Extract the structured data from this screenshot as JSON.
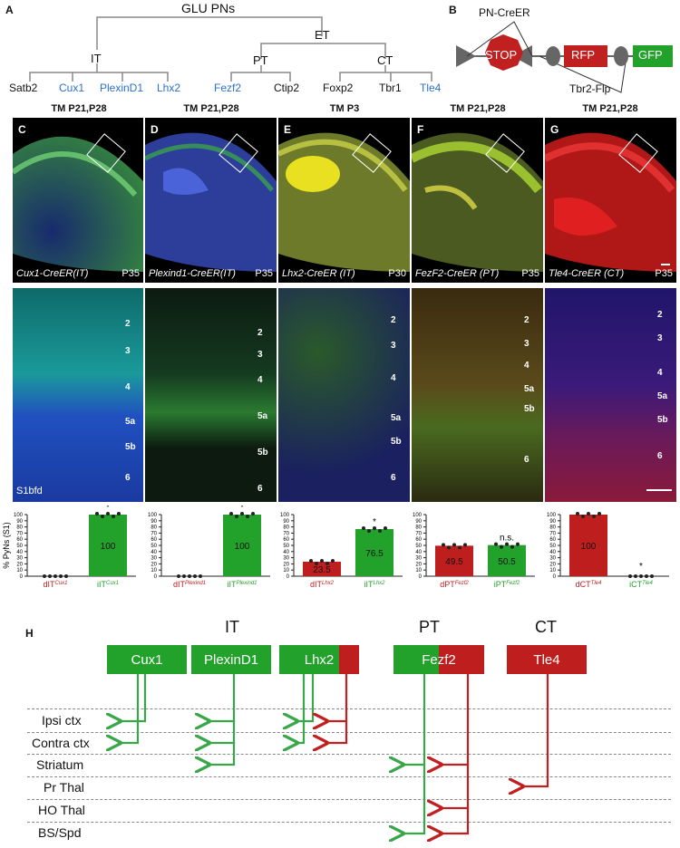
{
  "panel_A": {
    "letter": "A",
    "root": "GLU PNs",
    "it": "IT",
    "et": "ET",
    "pt": "PT",
    "ct": "CT",
    "it_genes": [
      "Satb2",
      "Cux1",
      "PlexinD1",
      "Lhx2"
    ],
    "pt_genes": [
      "Fezf2",
      "Ctip2"
    ],
    "ct_genes": [
      "Foxp2",
      "Tbr1",
      "Tle4"
    ]
  },
  "panel_B": {
    "letter": "B",
    "top_label": "PN-CreER",
    "stop": "STOP",
    "rfp": "RFP",
    "gfp": "GFP",
    "bottom_label": "Tbr2-Flp"
  },
  "columns": [
    {
      "tm": "TM P21,P28",
      "letter": "C",
      "line": "Cux1-CreER(IT)",
      "age": "P35"
    },
    {
      "tm": "TM P21,P28",
      "letter": "D",
      "line": "Plexind1-CreER(IT)",
      "age": "P35"
    },
    {
      "tm": "TM P3",
      "letter": "E",
      "line": "Lhx2-CreER (IT)",
      "age": "P30"
    },
    {
      "tm": "TM P21,P28",
      "letter": "F",
      "line": "FezF2-CreER (PT)",
      "age": "P35"
    },
    {
      "tm": "TM P21,P28",
      "letter": "G",
      "line": "Tle4-CreER (CT)",
      "age": "P35"
    }
  ],
  "layers": [
    "2",
    "3",
    "4",
    "5a",
    "5b",
    "6"
  ],
  "s1_label": "S1bfd",
  "chart_data": [
    {
      "type": "bar",
      "ylabel": "% PyNs (S1)",
      "ylim": [
        0,
        100
      ],
      "yticks": [
        0,
        10,
        20,
        30,
        40,
        50,
        60,
        70,
        80,
        90,
        100
      ],
      "categories": [
        "dITCux1",
        "iITCux1"
      ],
      "values": [
        0,
        100
      ],
      "labels": [
        "",
        "100"
      ],
      "sig": [
        "",
        "*"
      ]
    },
    {
      "type": "bar",
      "ylim": [
        0,
        100
      ],
      "yticks": [
        0,
        10,
        20,
        30,
        40,
        50,
        60,
        70,
        80,
        90,
        100
      ],
      "categories": [
        "dITPlexind1",
        "iITPlexind1"
      ],
      "values": [
        0,
        100
      ],
      "labels": [
        "",
        "100"
      ],
      "sig": [
        "",
        "*"
      ]
    },
    {
      "type": "bar",
      "ylim": [
        0,
        100
      ],
      "yticks": [
        0,
        10,
        20,
        30,
        40,
        50,
        60,
        70,
        80,
        90,
        100
      ],
      "categories": [
        "dITLhx2",
        "iITLhx2"
      ],
      "values": [
        23.5,
        76.5
      ],
      "labels": [
        "23.5",
        "76.5"
      ],
      "sig": [
        "",
        "*"
      ]
    },
    {
      "type": "bar",
      "ylim": [
        0,
        100
      ],
      "yticks": [
        0,
        10,
        20,
        30,
        40,
        50,
        60,
        70,
        80,
        90,
        100
      ],
      "categories": [
        "dPTFezf2",
        "iPTFezf2"
      ],
      "values": [
        49.5,
        50.5
      ],
      "labels": [
        "49.5",
        "50.5"
      ],
      "sig": [
        "",
        "n.s."
      ]
    },
    {
      "type": "bar",
      "ylim": [
        0,
        100
      ],
      "yticks": [
        0,
        10,
        20,
        30,
        40,
        50,
        60,
        70,
        80,
        90,
        100
      ],
      "categories": [
        "dCTTle4",
        "iCTTle4"
      ],
      "values": [
        100,
        0
      ],
      "labels": [
        "100",
        ""
      ],
      "sig": [
        "",
        "*"
      ]
    }
  ],
  "panel_H": {
    "letter": "H",
    "groups": [
      "IT",
      "PT",
      "CT"
    ],
    "boxes": [
      "Cux1",
      "PlexinD1",
      "Lhx2",
      "Fezf2",
      "Tle4"
    ],
    "targets": [
      "Ipsi ctx",
      "Contra ctx",
      "Striatum",
      "Pr Thal",
      "HO Thal",
      "BS/Spd"
    ],
    "colors": {
      "green": "#22a12b",
      "red": "#bf1e1e"
    }
  }
}
